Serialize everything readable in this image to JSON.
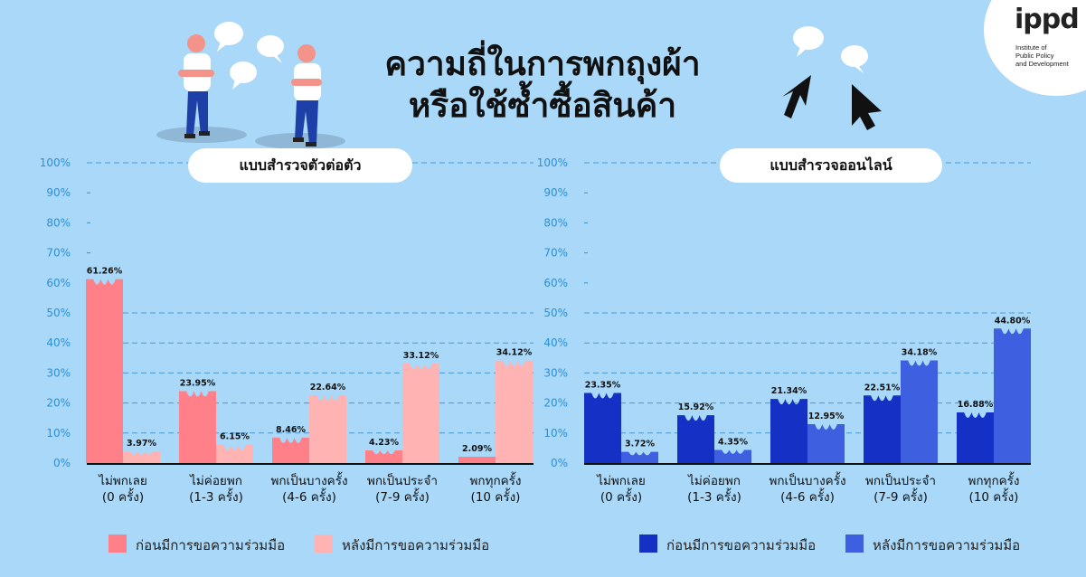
{
  "header": {
    "title_line1": "ความถี่ในการพกถุงผ้า",
    "title_line2": "หรือใช้ซ้ำซื้อสินค้า"
  },
  "logo": {
    "word": "ippd",
    "subtitle_line1": "Institute of",
    "subtitle_line2": "Public Policy",
    "subtitle_line3": "and Development"
  },
  "colors": {
    "background": "#a9d8f8",
    "offline_before": "#ff8088",
    "offline_after": "#ffb3b3",
    "online_before": "#1530c4",
    "online_after": "#3d5fe0",
    "gridline": "#3a8fd0",
    "axis_label": "#2e8fd6"
  },
  "chart_data": [
    {
      "type": "bar",
      "title": "แบบสำรวจตัวต่อตัว",
      "categories": [
        [
          "ไม่พกเลย",
          "(0 ครั้ง)"
        ],
        [
          "ไม่ค่อยพก",
          "(1-3 ครั้ง)"
        ],
        [
          "พกเป็นบางครั้ง",
          "(4-6 ครั้ง)"
        ],
        [
          "พกเป็นประจำ",
          "(7-9 ครั้ง)"
        ],
        [
          "พกทุกครั้ง",
          "(10 ครั้ง)"
        ]
      ],
      "series": [
        {
          "name": "ก่อนมีการขอความร่วมมือ",
          "values": [
            61.26,
            23.95,
            8.46,
            4.23,
            2.09
          ],
          "labels": [
            "61.26%",
            "23.95%",
            "8.46%",
            "4.23%",
            "2.09%"
          ],
          "color": "#ff8088"
        },
        {
          "name": "หลังมีการขอความร่วมมือ",
          "values": [
            3.97,
            6.15,
            22.64,
            33.12,
            34.12
          ],
          "labels": [
            "3.97%",
            "6.15%",
            "22.64%",
            "33.12%",
            "34.12%"
          ],
          "color": "#ffb3b3"
        }
      ],
      "ylim": [
        0,
        100
      ],
      "yticks": [
        "0%",
        "10%",
        "20%",
        "30%",
        "40%",
        "50%",
        "60%",
        "70%",
        "80%",
        "90%",
        "100%"
      ],
      "legend_position": "bottom",
      "grid": true
    },
    {
      "type": "bar",
      "title": "แบบสำรวจออนไลน์",
      "categories": [
        [
          "ไม่พกเลย",
          "(0 ครั้ง)"
        ],
        [
          "ไม่ค่อยพก",
          "(1-3 ครั้ง)"
        ],
        [
          "พกเป็นบางครั้ง",
          "(4-6 ครั้ง)"
        ],
        [
          "พกเป็นประจำ",
          "(7-9 ครั้ง)"
        ],
        [
          "พกทุกครั้ง",
          "(10 ครั้ง)"
        ]
      ],
      "series": [
        {
          "name": "ก่อนมีการขอความร่วมมือ",
          "values": [
            23.35,
            15.92,
            21.34,
            22.51,
            16.88
          ],
          "labels": [
            "23.35%",
            "15.92%",
            "21.34%",
            "22.51%",
            "16.88%"
          ],
          "color": "#1530c4"
        },
        {
          "name": "หลังมีการขอความร่วมมือ",
          "values": [
            3.72,
            4.35,
            12.95,
            34.18,
            44.8
          ],
          "labels": [
            "3.72%",
            "4.35%",
            "12.95%",
            "34.18%",
            "44.80%"
          ],
          "color": "#3d5fe0"
        }
      ],
      "ylim": [
        0,
        100
      ],
      "yticks": [
        "0%",
        "10%",
        "20%",
        "30%",
        "40%",
        "50%",
        "60%",
        "70%",
        "80%",
        "90%",
        "100%"
      ],
      "legend_position": "bottom",
      "grid": true
    }
  ]
}
